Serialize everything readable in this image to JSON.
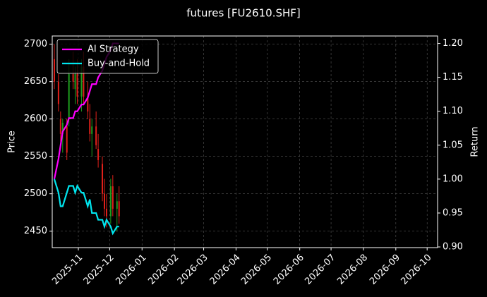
{
  "chart_data": {
    "type": "candlestick",
    "title": "futures [FU2610.SHF]",
    "ylabel": "Price",
    "y2label": "Return",
    "x": [
      "2025-10-09",
      "2025-10-13",
      "2025-10-15",
      "2025-10-17",
      "2025-10-21",
      "2025-10-23",
      "2025-10-27",
      "2025-10-29",
      "2025-10-31",
      "2025-11-04",
      "2025-11-06",
      "2025-11-10",
      "2025-11-12",
      "2025-11-14",
      "2025-11-18",
      "2025-11-20",
      "2025-11-24",
      "2025-11-26",
      "2025-11-28",
      "2025-12-02",
      "2025-12-04",
      "2025-12-08",
      "2025-12-10"
    ],
    "open": [
      2680,
      2650,
      2600,
      2580,
      2590,
      2600,
      2660,
      2640,
      2660,
      2630,
      2670,
      2630,
      2600,
      2580,
      2590,
      2560,
      2540,
      2500,
      2480,
      2470,
      2510,
      2480,
      2490
    ],
    "high": [
      2700,
      2660,
      2610,
      2600,
      2600,
      2680,
      2690,
      2670,
      2680,
      2680,
      2690,
      2650,
      2620,
      2600,
      2610,
      2580,
      2550,
      2520,
      2500,
      2520,
      2525,
      2500,
      2510
    ],
    "low": [
      2640,
      2610,
      2570,
      2555,
      2545,
      2590,
      2640,
      2620,
      2620,
      2610,
      2620,
      2600,
      2570,
      2550,
      2560,
      2535,
      2490,
      2470,
      2455,
      2460,
      2470,
      2450,
      2460
    ],
    "close": [
      2650,
      2620,
      2580,
      2595,
      2555,
      2660,
      2650,
      2660,
      2630,
      2670,
      2630,
      2610,
      2580,
      2590,
      2565,
      2545,
      2500,
      2480,
      2470,
      2510,
      2480,
      2490,
      2470
    ],
    "up_color": "#1e9e1e",
    "down_color": "#e0201a",
    "series": [
      {
        "name": "AI Strategy",
        "color": "#ff00ff",
        "axis": "y2",
        "values": [
          1.0,
          1.03,
          1.05,
          1.07,
          1.08,
          1.09,
          1.09,
          1.1,
          1.1,
          1.11,
          1.11,
          1.12,
          1.13,
          1.14,
          1.14,
          1.15,
          1.16,
          1.17,
          1.18,
          1.19,
          1.2,
          1.2,
          1.2
        ]
      },
      {
        "name": "Buy-and-Hold",
        "color": "#00e5ee",
        "axis": "y2",
        "values": [
          1.0,
          0.98,
          0.96,
          0.96,
          0.98,
          0.99,
          0.99,
          0.98,
          0.99,
          0.98,
          0.98,
          0.96,
          0.97,
          0.95,
          0.95,
          0.94,
          0.94,
          0.93,
          0.94,
          0.93,
          0.92,
          0.93,
          0.93
        ]
      }
    ],
    "xlim": [
      "2025-10-07",
      "2026-10-11"
    ],
    "xticks": [
      {
        "value": "2025-11-01",
        "label": "2025-11"
      },
      {
        "value": "2025-12-01",
        "label": "2025-12"
      },
      {
        "value": "2026-01-01",
        "label": "2026-01"
      },
      {
        "value": "2026-02-01",
        "label": "2026-02"
      },
      {
        "value": "2026-03-01",
        "label": "2026-03"
      },
      {
        "value": "2026-04-01",
        "label": "2026-04"
      },
      {
        "value": "2026-05-01",
        "label": "2026-05"
      },
      {
        "value": "2026-06-01",
        "label": "2026-06"
      },
      {
        "value": "2026-07-01",
        "label": "2026-07"
      },
      {
        "value": "2026-08-01",
        "label": "2026-08"
      },
      {
        "value": "2026-09-01",
        "label": "2026-09"
      },
      {
        "value": "2026-10-01",
        "label": "2026-10"
      }
    ],
    "ylim": [
      2428,
      2711
    ],
    "yticks": [
      2450,
      2500,
      2550,
      2600,
      2650,
      2700
    ],
    "y2lim": [
      0.899,
      1.211
    ],
    "y2ticks": [
      {
        "value": 0.9,
        "label": "0.90"
      },
      {
        "value": 0.95,
        "label": "0.95"
      },
      {
        "value": 1.0,
        "label": "1.00"
      },
      {
        "value": 1.05,
        "label": "1.05"
      },
      {
        "value": 1.1,
        "label": "1.10"
      },
      {
        "value": 1.15,
        "label": "1.15"
      },
      {
        "value": 1.2,
        "label": "1.20"
      }
    ],
    "grid": true,
    "legend": "upper left"
  }
}
